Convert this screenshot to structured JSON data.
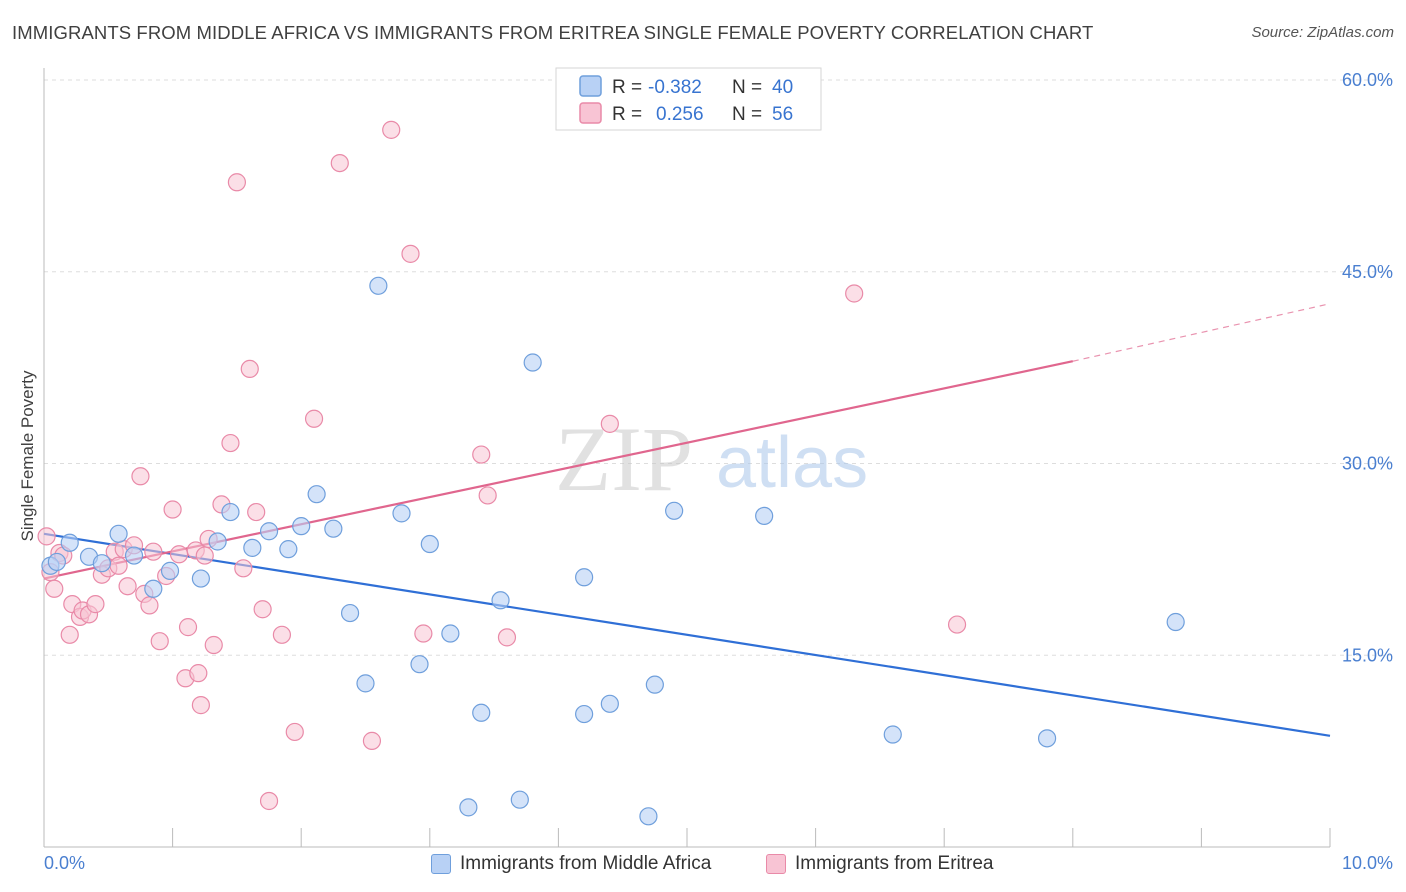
{
  "header": {
    "title": "IMMIGRANTS FROM MIDDLE AFRICA VS IMMIGRANTS FROM ERITREA SINGLE FEMALE POVERTY CORRELATION CHART",
    "source": "Source: ZipAtlas.com"
  },
  "watermark": {
    "zip": "ZIP",
    "atlas": "atlas"
  },
  "colors": {
    "blue_fill": "#b8d1f5",
    "blue_stroke": "#6f9fdc",
    "blue_line": "#2f6fd6",
    "pink_fill": "#f8c4d4",
    "pink_stroke": "#e98aa8",
    "pink_line": "#e0668e",
    "tick_label": "#4a7fd0",
    "grid": "#dddddd"
  },
  "legend": {
    "rows": [
      {
        "r_label": "R =",
        "r_value": "-0.382",
        "n_label": "N =",
        "n_value": "40"
      },
      {
        "r_label": "R =",
        "r_value": "0.256",
        "n_label": "N =",
        "n_value": "56"
      }
    ],
    "bottom": [
      "Immigrants from Middle Africa",
      "Immigrants from Eritrea"
    ]
  },
  "chart_data": {
    "type": "scatter",
    "title": "IMMIGRANTS FROM MIDDLE AFRICA VS IMMIGRANTS FROM ERITREA SINGLE FEMALE POVERTY CORRELATION CHART",
    "xlabel": "",
    "ylabel": "Single Female Poverty",
    "xlim": [
      0,
      10
    ],
    "ylim": [
      0,
      60
    ],
    "x_tick_labels": [
      "0.0%",
      "10.0%"
    ],
    "y_ticks": [
      15,
      30,
      45,
      60
    ],
    "y_tick_labels": [
      "15.0%",
      "30.0%",
      "45.0%",
      "60.0%"
    ],
    "grid": "horizontal dashed",
    "legend_placement": "top-center",
    "series": [
      {
        "name": "Immigrants from Middle Africa",
        "r": -0.382,
        "n": 40,
        "points": [
          [
            0.05,
            22.0
          ],
          [
            0.2,
            23.8
          ],
          [
            0.35,
            22.7
          ],
          [
            0.45,
            22.2
          ],
          [
            0.58,
            24.5
          ],
          [
            0.7,
            22.8
          ],
          [
            0.85,
            20.2
          ],
          [
            0.98,
            21.6
          ],
          [
            1.22,
            21.0
          ],
          [
            1.35,
            23.9
          ],
          [
            1.45,
            26.2
          ],
          [
            1.62,
            23.4
          ],
          [
            1.75,
            24.7
          ],
          [
            1.9,
            23.3
          ],
          [
            2.0,
            25.1
          ],
          [
            2.12,
            27.6
          ],
          [
            2.25,
            24.9
          ],
          [
            2.38,
            18.3
          ],
          [
            2.5,
            12.8
          ],
          [
            2.6,
            43.9
          ],
          [
            2.78,
            26.1
          ],
          [
            2.92,
            14.3
          ],
          [
            3.0,
            23.7
          ],
          [
            3.16,
            16.7
          ],
          [
            3.3,
            3.1
          ],
          [
            3.4,
            10.5
          ],
          [
            3.55,
            19.3
          ],
          [
            3.7,
            3.7
          ],
          [
            3.8,
            37.9
          ],
          [
            4.2,
            10.4
          ],
          [
            4.2,
            21.1
          ],
          [
            4.4,
            11.2
          ],
          [
            4.7,
            2.4
          ],
          [
            4.75,
            12.7
          ],
          [
            4.9,
            26.3
          ],
          [
            5.6,
            25.9
          ],
          [
            6.6,
            8.8
          ],
          [
            7.8,
            8.5
          ],
          [
            8.8,
            17.6
          ],
          [
            0.1,
            22.3
          ]
        ],
        "trend": {
          "x": [
            0.0,
            10.0
          ],
          "y": [
            24.5,
            8.7
          ]
        }
      },
      {
        "name": "Immigrants from Eritrea",
        "r": 0.256,
        "n": 56,
        "points": [
          [
            0.02,
            24.3
          ],
          [
            0.05,
            21.5
          ],
          [
            0.08,
            20.2
          ],
          [
            0.12,
            23.0
          ],
          [
            0.15,
            22.8
          ],
          [
            0.2,
            16.6
          ],
          [
            0.22,
            19.0
          ],
          [
            0.28,
            18.0
          ],
          [
            0.3,
            18.5
          ],
          [
            0.35,
            18.2
          ],
          [
            0.4,
            19.0
          ],
          [
            0.45,
            21.3
          ],
          [
            0.5,
            21.8
          ],
          [
            0.55,
            23.1
          ],
          [
            0.58,
            22.0
          ],
          [
            0.62,
            23.3
          ],
          [
            0.65,
            20.4
          ],
          [
            0.7,
            23.6
          ],
          [
            0.75,
            29.0
          ],
          [
            0.78,
            19.8
          ],
          [
            0.82,
            18.9
          ],
          [
            0.85,
            23.1
          ],
          [
            0.9,
            16.1
          ],
          [
            0.95,
            21.2
          ],
          [
            1.0,
            26.4
          ],
          [
            1.05,
            22.9
          ],
          [
            1.1,
            13.2
          ],
          [
            1.12,
            17.2
          ],
          [
            1.18,
            23.2
          ],
          [
            1.2,
            13.6
          ],
          [
            1.22,
            11.1
          ],
          [
            1.25,
            22.8
          ],
          [
            1.28,
            24.1
          ],
          [
            1.32,
            15.8
          ],
          [
            1.38,
            26.8
          ],
          [
            1.45,
            31.6
          ],
          [
            1.5,
            52.0
          ],
          [
            1.55,
            21.8
          ],
          [
            1.6,
            37.4
          ],
          [
            1.65,
            26.2
          ],
          [
            1.7,
            18.6
          ],
          [
            1.75,
            3.6
          ],
          [
            1.85,
            16.6
          ],
          [
            1.95,
            9.0
          ],
          [
            2.1,
            33.5
          ],
          [
            2.3,
            53.5
          ],
          [
            2.55,
            8.3
          ],
          [
            2.7,
            56.1
          ],
          [
            2.85,
            46.4
          ],
          [
            2.95,
            16.7
          ],
          [
            3.4,
            30.7
          ],
          [
            3.45,
            27.5
          ],
          [
            3.6,
            16.4
          ],
          [
            4.4,
            33.1
          ],
          [
            6.3,
            43.3
          ],
          [
            7.1,
            17.4
          ]
        ],
        "trend": {
          "x": [
            0.0,
            8.0
          ],
          "y": [
            21.0,
            38.0
          ]
        },
        "trend_extension": {
          "x": [
            8.0,
            10.0
          ],
          "y": [
            38.0,
            42.5
          ]
        }
      }
    ]
  }
}
